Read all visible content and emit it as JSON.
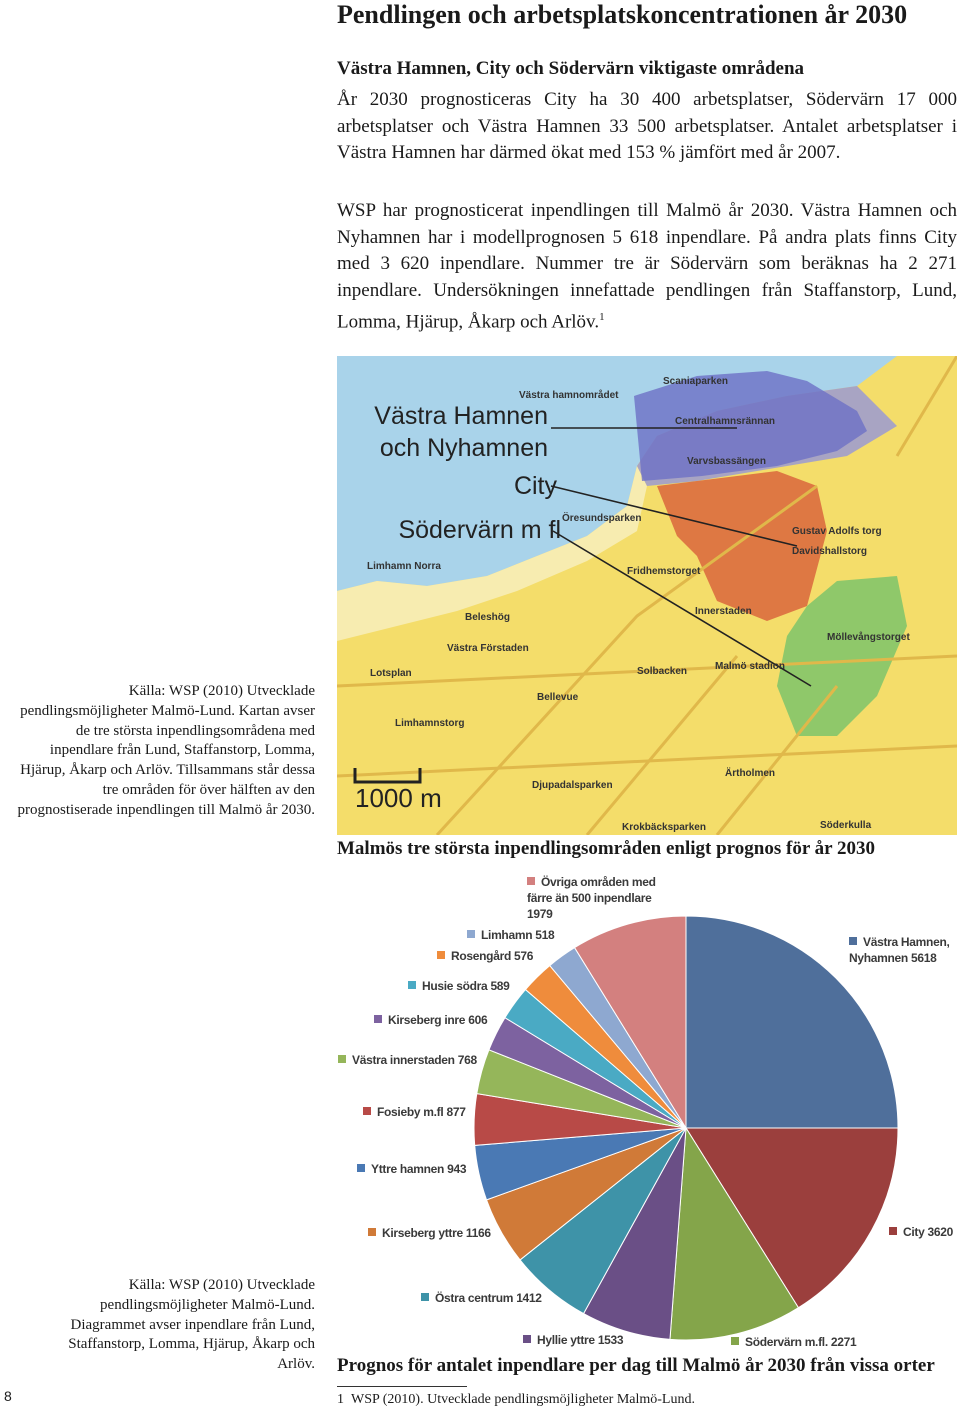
{
  "header": {
    "title": "Pendlingen och arbetsplatskoncentrationen år 2030"
  },
  "section": {
    "heading": "Västra Hamnen, City och Södervärn viktigaste områdena",
    "paragraphs": [
      "År 2030 prognosticeras City ha 30 400 arbetsplatser, Södervärn 17 000 arbetsplatser och Västra Hamnen 33 500 arbetsplatser. Antalet arbetsplatser i Västra Hamnen har därmed ökat med 153 % jämfört med år 2007.",
      "WSP har prognosticerat inpendlingen till Malmö år 2030. Västra Hamnen och Nyhamnen har i modellprognosen 5 618 inpendlare. På andra plats finns City med 3 620 inpendlare. Nummer tre är Södervärn som beräknas ha 2 271 inpendlare. Undersökningen innefattade pendlingen från Staffanstorp, Lund, Lomma, Hjärup, Åkarp och Arlöv."
    ],
    "footnote_ref": "1"
  },
  "map": {
    "area_labels": [
      "Västra Hamnen och Nyhamnen",
      "City",
      "Södervärn m fl"
    ],
    "places": [
      "Västra hamnområdet",
      "Scaniaparken",
      "Centralhamnsrännan",
      "Varvsbassängen",
      "Öresundsparken",
      "Limhamn Norra",
      "Beleshög",
      "Västra Förstaden",
      "Innerstaden",
      "Fridhemstorget",
      "Gustav Adolfs torg",
      "Davidshallstorg",
      "Möllevångstorget",
      "Solbacken",
      "Bellevue",
      "Lotsplan",
      "Limhamnstorg",
      "Djupadalsparken",
      "Ärtholmen",
      "Söderkulla",
      "Malmö stadion",
      "Krokbäcksparken"
    ],
    "scale": "1000 m",
    "source": "Källa: WSP (2010) Utvecklade pendlingsmöjligheter Malmö-Lund. Kartan avser de tre största inpendlingsområdena med inpendlare från Lund, Staffanstorp, Lomma, Hjärup, Åkarp och Arlöv. Tillsammans står dessa tre områden för över hälften av den prognostiserade inpendlingen till Malmö år 2030.",
    "caption": "Malmös tre största inpendlingsområden enligt prognos för år 2030"
  },
  "chart_data": {
    "type": "pie",
    "categories": [
      "Västra Hamnen, Nyhamnen",
      "City",
      "Södervärn m.fl.",
      "Hyllie yttre",
      "Östra centrum",
      "Kirseberg yttre",
      "Yttre hamnen",
      "Fosieby m.fl",
      "Västra innerstaden",
      "Kirseberg inre",
      "Husie södra",
      "Rosengård",
      "Limhamn",
      "Övriga områden med färre än 500 inpendlare"
    ],
    "values": [
      5618,
      3620,
      2271,
      1533,
      1412,
      1166,
      943,
      877,
      768,
      606,
      589,
      576,
      518,
      1979
    ],
    "colors": [
      "#4f6f9b",
      "#9b3f3d",
      "#84a54a",
      "#6a4f86",
      "#3e93a8",
      "#d07a38",
      "#4a79b4",
      "#b84a47",
      "#95b65a",
      "#7d62a0",
      "#4aaac4",
      "#ef8c3c",
      "#8ea8d0",
      "#d3807f"
    ],
    "source": "Källa: WSP (2010) Utvecklade pendlingsmöjligheter Malmö-Lund. Diagrammet avser inpendlare från Lund, Staffanstorp, Lomma, Hjärup, Åkarp och Arlöv.",
    "title": "Prognos för antalet inpendlare per dag till Malmö år 2030 från vissa orter"
  },
  "footnote": {
    "number": "1",
    "text": "WSP (2010). Utvecklade pendlingsmöjligheter Malmö-Lund."
  },
  "page_number": "8"
}
